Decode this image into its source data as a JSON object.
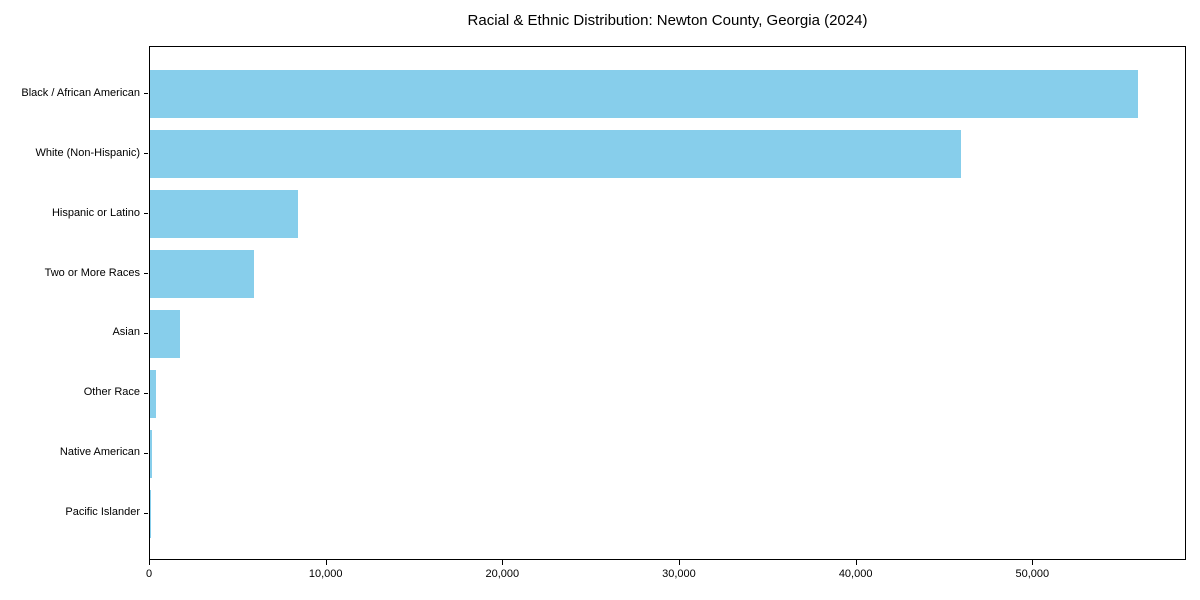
{
  "chart_data": {
    "type": "bar",
    "orientation": "horizontal",
    "title": "Racial & Ethnic Distribution: Newton County, Georgia (2024)",
    "categories": [
      "Black / African American",
      "White (Non-Hispanic)",
      "Hispanic or Latino",
      "Two or More Races",
      "Asian",
      "Other Race",
      "Native American",
      "Pacific Islander"
    ],
    "values": [
      55900,
      45900,
      8400,
      5900,
      1700,
      350,
      120,
      30
    ],
    "xlabel": "",
    "ylabel": "",
    "xlim": [
      0,
      58700
    ],
    "x_ticks": [
      0,
      10000,
      20000,
      30000,
      40000,
      50000
    ],
    "x_tick_labels": [
      "0",
      "10,000",
      "20,000",
      "30,000",
      "40,000",
      "50,000"
    ],
    "bar_color": "#87CEEB",
    "frame_color": "#000000",
    "background_color": "#ffffff",
    "grid": false,
    "legend": false
  }
}
